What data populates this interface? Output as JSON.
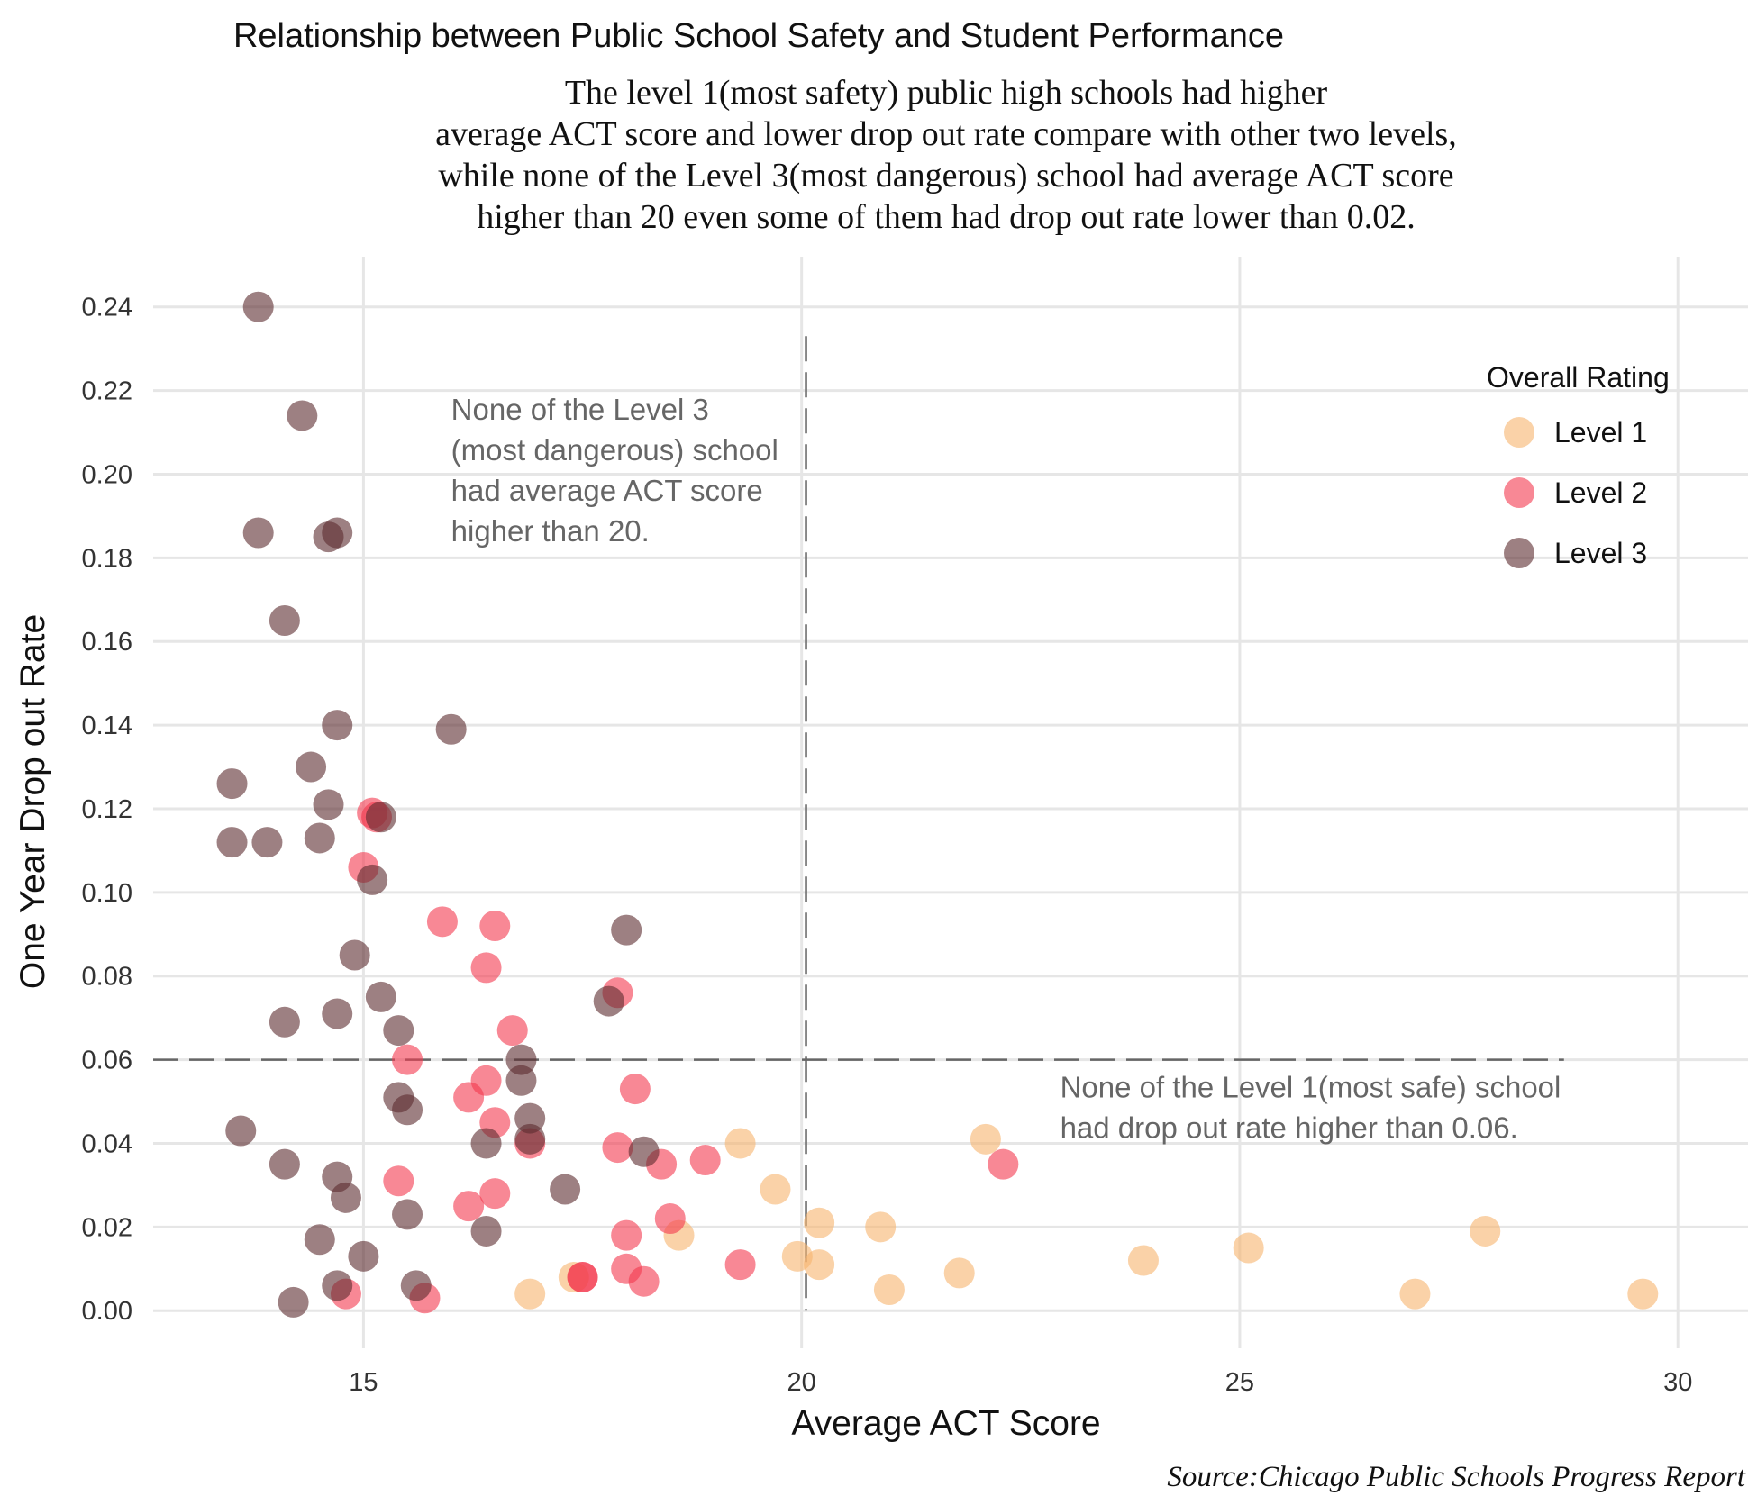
{
  "chart_data": {
    "type": "scatter",
    "title": "Relationship between Public School Safety and Student Performance",
    "subtitle": [
      "The level 1(most safety) public high schools had higher",
      "average ACT score and lower drop out rate compare with other two levels,",
      "while none of the Level 3(most dangerous) school had average ACT score",
      "higher than 20 even some of them had drop out rate lower than 0.02."
    ],
    "xlabel": "Average ACT Score",
    "ylabel": "One Year Drop out Rate",
    "source": "Source:Chicago Public Schools Progress Report",
    "xlim": [
      12.6,
      30.8
    ],
    "ylim": [
      -0.009,
      0.252
    ],
    "xticks": [
      15,
      20,
      25,
      30
    ],
    "xtick_labels": [
      "15",
      "20",
      "25",
      "30"
    ],
    "yticks": [
      0.0,
      0.02,
      0.04,
      0.06,
      0.08,
      0.1,
      0.12,
      0.14,
      0.16,
      0.18,
      0.2,
      0.22,
      0.24
    ],
    "ytick_labels": [
      "0.00",
      "0.02",
      "0.04",
      "0.06",
      "0.08",
      "0.10",
      "0.12",
      "0.14",
      "0.16",
      "0.18",
      "0.20",
      "0.22",
      "0.24"
    ],
    "grid": true,
    "legend": {
      "title": "Overall Rating",
      "position": "right"
    },
    "series": [
      {
        "name": "Level 1",
        "color": "#F7B46E",
        "x": [
          16.9,
          17.4,
          18.6,
          19.3,
          19.7,
          20.2,
          20.2,
          19.95,
          20.9,
          21.0,
          21.8,
          22.1,
          23.9,
          25.1,
          27.0,
          27.8,
          29.6
        ],
        "y": [
          0.004,
          0.008,
          0.018,
          0.04,
          0.029,
          0.021,
          0.011,
          0.013,
          0.02,
          0.005,
          0.009,
          0.041,
          0.012,
          0.015,
          0.004,
          0.019,
          0.004
        ]
      },
      {
        "name": "Level 2",
        "color": "#F4384F",
        "x": [
          15.1,
          15.15,
          15.0,
          15.9,
          16.5,
          16.4,
          16.7,
          17.9,
          15.5,
          16.2,
          16.4,
          16.5,
          18.1,
          17.9,
          18.4,
          18.9,
          16.9,
          15.4,
          16.2,
          16.5,
          18.5,
          18.0,
          18.0,
          17.5,
          17.5,
          18.2,
          19.3,
          14.8,
          15.7,
          22.3
        ],
        "y": [
          0.119,
          0.118,
          0.106,
          0.093,
          0.092,
          0.082,
          0.067,
          0.076,
          0.06,
          0.051,
          0.055,
          0.045,
          0.053,
          0.039,
          0.035,
          0.036,
          0.04,
          0.031,
          0.025,
          0.028,
          0.022,
          0.018,
          0.01,
          0.008,
          0.008,
          0.007,
          0.011,
          0.004,
          0.003,
          0.035
        ]
      },
      {
        "name": "Level 3",
        "color": "#5C2B2E",
        "x": [
          13.8,
          14.3,
          13.8,
          14.6,
          14.7,
          14.1,
          14.7,
          16.0,
          13.5,
          14.4,
          14.6,
          13.5,
          13.9,
          14.5,
          15.2,
          15.1,
          14.9,
          18.0,
          17.8,
          15.2,
          15.4,
          14.1,
          14.7,
          16.8,
          16.8,
          15.4,
          15.5,
          16.9,
          13.6,
          16.9,
          16.4,
          18.2,
          14.1,
          14.7,
          14.8,
          17.3,
          15.5,
          14.5,
          16.4,
          15.0,
          14.7,
          15.6,
          14.2
        ],
        "y": [
          0.24,
          0.214,
          0.186,
          0.185,
          0.186,
          0.165,
          0.14,
          0.139,
          0.126,
          0.13,
          0.121,
          0.112,
          0.112,
          0.113,
          0.118,
          0.103,
          0.085,
          0.091,
          0.074,
          0.075,
          0.067,
          0.069,
          0.071,
          0.06,
          0.055,
          0.051,
          0.048,
          0.046,
          0.043,
          0.041,
          0.04,
          0.038,
          0.035,
          0.032,
          0.027,
          0.029,
          0.023,
          0.017,
          0.019,
          0.013,
          0.006,
          0.006,
          0.002
        ]
      }
    ],
    "reference_lines": [
      {
        "orientation": "vertical",
        "x": 20.05,
        "y_range": [
          0.0,
          0.233
        ]
      },
      {
        "orientation": "horizontal",
        "y": 0.06,
        "x_range": [
          12.6,
          28.7
        ]
      }
    ],
    "annotations": [
      {
        "lines": [
          "None of the Level 3",
          "(most dangerous) school",
          "had average ACT score",
          "higher than 20."
        ],
        "x": 16.0,
        "y": 0.213
      },
      {
        "lines": [
          "None of the Level 1(most safe) school",
          "had drop out rate higher than 0.06."
        ],
        "x": 22.95,
        "y": 0.051
      }
    ]
  }
}
